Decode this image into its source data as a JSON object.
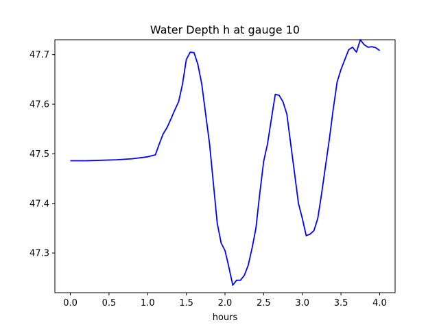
{
  "chart_data": {
    "type": "line",
    "title": "Water Depth h at gauge 10",
    "xlabel": "hours",
    "ylabel": "",
    "xlim": [
      -0.2,
      4.2
    ],
    "ylim": [
      47.22,
      47.73
    ],
    "xticks": [
      0.0,
      0.5,
      1.0,
      1.5,
      2.0,
      2.5,
      3.0,
      3.5,
      4.0
    ],
    "xtick_labels": [
      "0.0",
      "0.5",
      "1.0",
      "1.5",
      "2.0",
      "2.5",
      "3.0",
      "3.5",
      "4.0"
    ],
    "yticks": [
      47.3,
      47.4,
      47.5,
      47.6,
      47.7
    ],
    "ytick_labels": [
      "47.3",
      "47.4",
      "47.5",
      "47.6",
      "47.7"
    ],
    "grid": false,
    "legend": "none",
    "series": [
      {
        "color": "#0000ff",
        "x": [
          0.0,
          0.2,
          0.4,
          0.6,
          0.8,
          1.0,
          1.1,
          1.15,
          1.2,
          1.25,
          1.3,
          1.35,
          1.4,
          1.45,
          1.5,
          1.55,
          1.6,
          1.65,
          1.7,
          1.75,
          1.8,
          1.85,
          1.9,
          1.95,
          2.0,
          2.05,
          2.1,
          2.15,
          2.2,
          2.25,
          2.3,
          2.35,
          2.4,
          2.45,
          2.5,
          2.55,
          2.6,
          2.65,
          2.7,
          2.75,
          2.8,
          2.85,
          2.9,
          2.95,
          3.0,
          3.05,
          3.1,
          3.15,
          3.2,
          3.25,
          3.3,
          3.35,
          3.4,
          3.45,
          3.5,
          3.55,
          3.6,
          3.65,
          3.7,
          3.75,
          3.8,
          3.85,
          3.9,
          3.95,
          4.0
        ],
        "values": [
          47.486,
          47.486,
          47.487,
          47.488,
          47.49,
          47.494,
          47.498,
          47.52,
          47.54,
          47.553,
          47.57,
          47.588,
          47.605,
          47.64,
          47.69,
          47.705,
          47.704,
          47.68,
          47.64,
          47.58,
          47.52,
          47.44,
          47.36,
          47.32,
          47.305,
          47.272,
          47.235,
          47.245,
          47.245,
          47.255,
          47.275,
          47.31,
          47.35,
          47.42,
          47.485,
          47.52,
          47.57,
          47.62,
          47.618,
          47.605,
          47.58,
          47.52,
          47.46,
          47.4,
          47.37,
          47.335,
          47.338,
          47.345,
          47.37,
          47.42,
          47.475,
          47.53,
          47.59,
          47.645,
          47.67,
          47.69,
          47.71,
          47.715,
          47.705,
          47.73,
          47.72,
          47.715,
          47.716,
          47.714,
          47.708
        ]
      }
    ]
  }
}
